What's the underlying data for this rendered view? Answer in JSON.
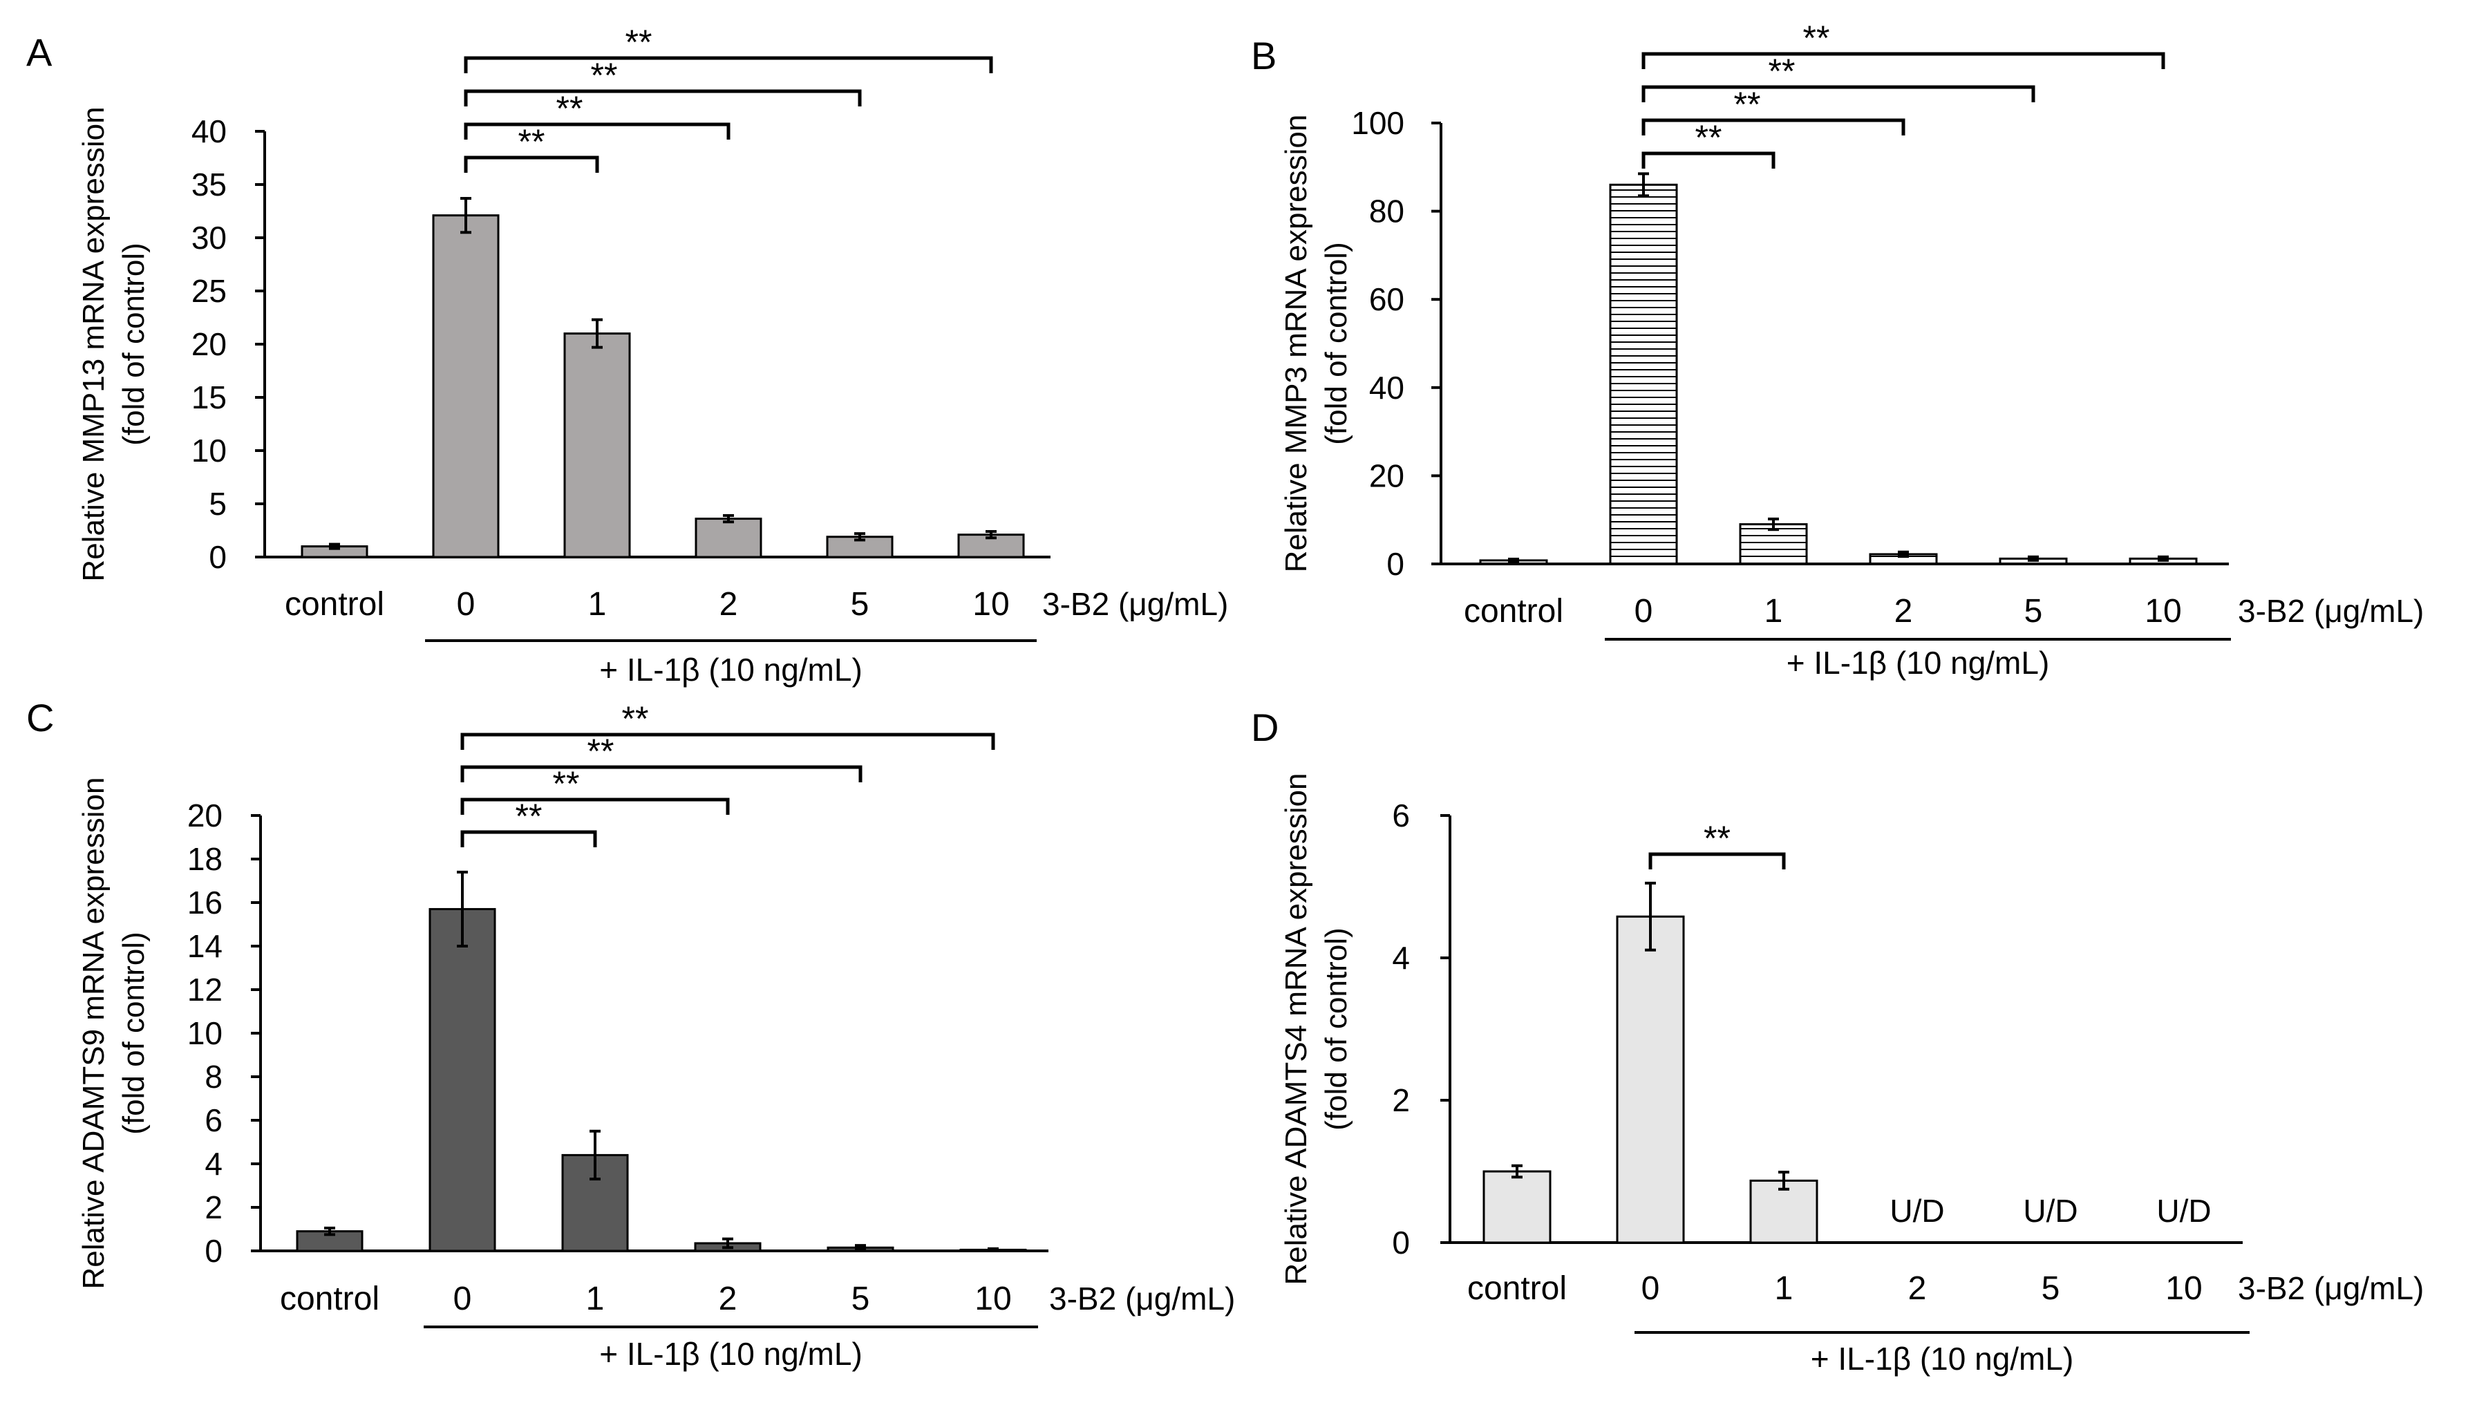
{
  "chart_data": [
    {
      "panel": "A",
      "type": "bar",
      "ylabel": "Relative MMP13 mRNA expression",
      "ylabel2": "(fold of control)",
      "categories": [
        "control",
        "0",
        "1",
        "2",
        "5",
        "10"
      ],
      "values": [
        1.0,
        32.1,
        21.0,
        3.6,
        1.9,
        2.1
      ],
      "errors": [
        0.2,
        1.6,
        1.3,
        0.3,
        0.3,
        0.3
      ],
      "bar_labels": [
        "",
        "",
        "",
        "",
        "",
        ""
      ],
      "ylim": [
        0,
        40
      ],
      "yticks": [
        0,
        5,
        10,
        15,
        20,
        25,
        30,
        35,
        40
      ],
      "fill": "#a9a6a6",
      "pattern": "none",
      "xunit": "3-B2 (μg/mL)",
      "treatment": "+ IL-1β (10 ng/mL)",
      "sig": [
        {
          "from": 1,
          "to": 2,
          "label": "**"
        },
        {
          "from": 1,
          "to": 3,
          "label": "**"
        },
        {
          "from": 1,
          "to": 4,
          "label": "**"
        },
        {
          "from": 1,
          "to": 5,
          "label": "**"
        }
      ]
    },
    {
      "panel": "B",
      "type": "bar",
      "ylabel": "Relative MMP3 mRNA expression",
      "ylabel2": "(fold of control)",
      "categories": [
        "control",
        "0",
        "1",
        "2",
        "5",
        "10"
      ],
      "values": [
        0.8,
        86.0,
        9.0,
        2.2,
        1.2,
        1.2
      ],
      "errors": [
        0.3,
        2.5,
        1.2,
        0.5,
        0.4,
        0.4
      ],
      "bar_labels": [
        "",
        "",
        "",
        "",
        "",
        ""
      ],
      "ylim": [
        0,
        100
      ],
      "yticks": [
        0,
        20,
        40,
        60,
        80,
        100
      ],
      "fill": "#ffffff",
      "pattern": "hstripes",
      "xunit": "3-B2 (μg/mL)",
      "treatment": "+ IL-1β (10 ng/mL)",
      "sig": [
        {
          "from": 1,
          "to": 2,
          "label": "**"
        },
        {
          "from": 1,
          "to": 3,
          "label": "**"
        },
        {
          "from": 1,
          "to": 4,
          "label": "**"
        },
        {
          "from": 1,
          "to": 5,
          "label": "**"
        }
      ]
    },
    {
      "panel": "C",
      "type": "bar",
      "ylabel": "Relative ADAMTS9 mRNA expression",
      "ylabel2": "(fold of control)",
      "categories": [
        "control",
        "0",
        "1",
        "2",
        "5",
        "10"
      ],
      "values": [
        0.9,
        15.7,
        4.4,
        0.35,
        0.15,
        0.05
      ],
      "errors": [
        0.15,
        1.7,
        1.1,
        0.2,
        0.1,
        0.05
      ],
      "bar_labels": [
        "",
        "",
        "",
        "",
        "",
        ""
      ],
      "ylim": [
        0,
        20
      ],
      "yticks": [
        0,
        2,
        4,
        6,
        8,
        10,
        12,
        14,
        16,
        18,
        20
      ],
      "fill": "#595959",
      "pattern": "none",
      "xunit": "3-B2 (μg/mL)",
      "treatment": "+ IL-1β (10 ng/mL)",
      "sig": [
        {
          "from": 1,
          "to": 2,
          "label": "**"
        },
        {
          "from": 1,
          "to": 3,
          "label": "**"
        },
        {
          "from": 1,
          "to": 4,
          "label": "**"
        },
        {
          "from": 1,
          "to": 5,
          "label": "**"
        }
      ]
    },
    {
      "panel": "D",
      "type": "bar",
      "ylabel": "Relative ADAMTS4 mRNA expression",
      "ylabel2": "(fold of control)",
      "categories": [
        "control",
        "0",
        "1",
        "2",
        "5",
        "10"
      ],
      "values": [
        1.0,
        4.58,
        0.87,
        null,
        null,
        null
      ],
      "errors": [
        0.08,
        0.47,
        0.12,
        null,
        null,
        null
      ],
      "bar_labels": [
        "",
        "",
        "",
        "U/D",
        "U/D",
        "U/D"
      ],
      "ylim": [
        0,
        6
      ],
      "yticks": [
        0,
        2,
        4,
        6
      ],
      "fill": "#e6e6e6",
      "pattern": "none",
      "xunit": "3-B2 (μg/mL)",
      "treatment": "+ IL-1β (10 ng/mL)",
      "sig": [
        {
          "from": 1,
          "to": 2,
          "label": "**"
        }
      ]
    }
  ]
}
